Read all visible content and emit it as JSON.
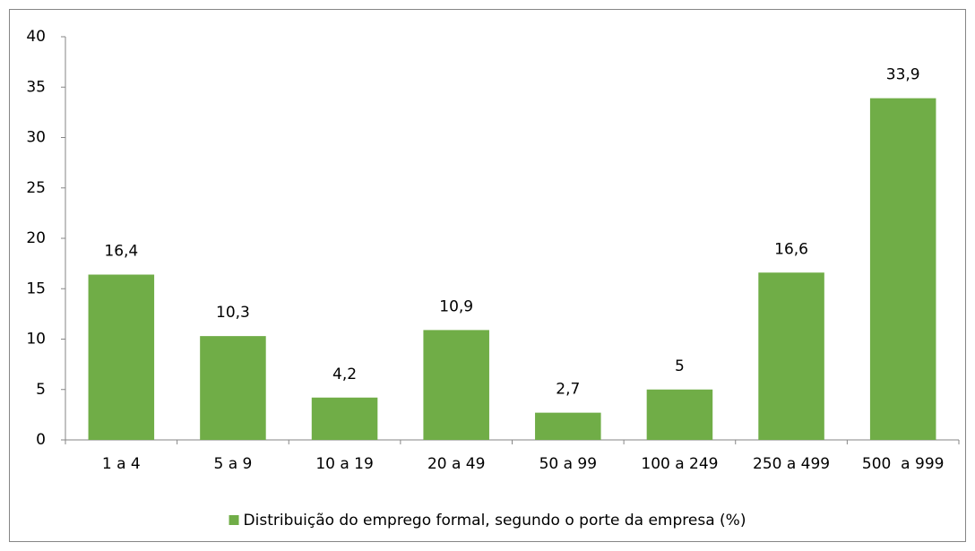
{
  "chart_data": {
    "type": "bar",
    "categories": [
      "1 a 4",
      "5 a 9",
      "10 a 19",
      "20 a 49",
      "50 a 99",
      "100 a 249",
      "250 a 499",
      "500  a 999"
    ],
    "series": [
      {
        "name": "Distribuição do emprego formal, segundo o porte da empresa (%)",
        "color": "#70ad47",
        "values": [
          16.4,
          10.3,
          4.2,
          10.9,
          2.7,
          5,
          16.6,
          33.9
        ],
        "value_labels": [
          "16,4",
          "10,3",
          "4,2",
          "10,9",
          "2,7",
          "5",
          "16,6",
          "33,9"
        ]
      }
    ],
    "ylim": [
      0,
      40
    ],
    "yticks": [
      0,
      5,
      10,
      15,
      20,
      25,
      30,
      35,
      40
    ],
    "grid": false,
    "legend": "bottom"
  }
}
